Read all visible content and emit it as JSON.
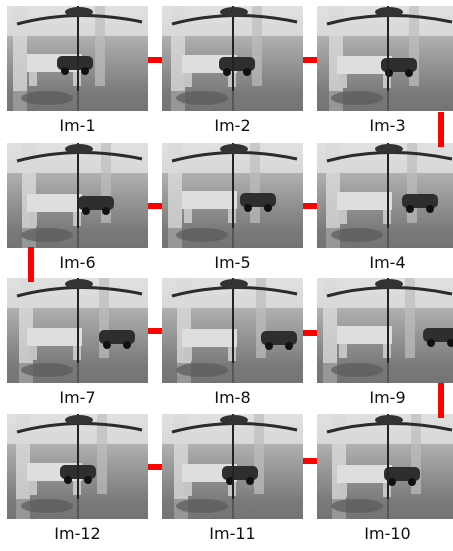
{
  "frames": [
    {
      "label": "Im-1"
    },
    {
      "label": "Im-2"
    },
    {
      "label": "Im-3"
    },
    {
      "label": "Im-6"
    },
    {
      "label": "Im-5"
    },
    {
      "label": "Im-4"
    },
    {
      "label": "Im-7"
    },
    {
      "label": "Im-8"
    },
    {
      "label": "Im-9"
    },
    {
      "label": "Im-12"
    },
    {
      "label": "Im-11"
    },
    {
      "label": "Im-10"
    }
  ],
  "colors": {
    "connector": "#ff0000",
    "background": "#ffffff"
  }
}
